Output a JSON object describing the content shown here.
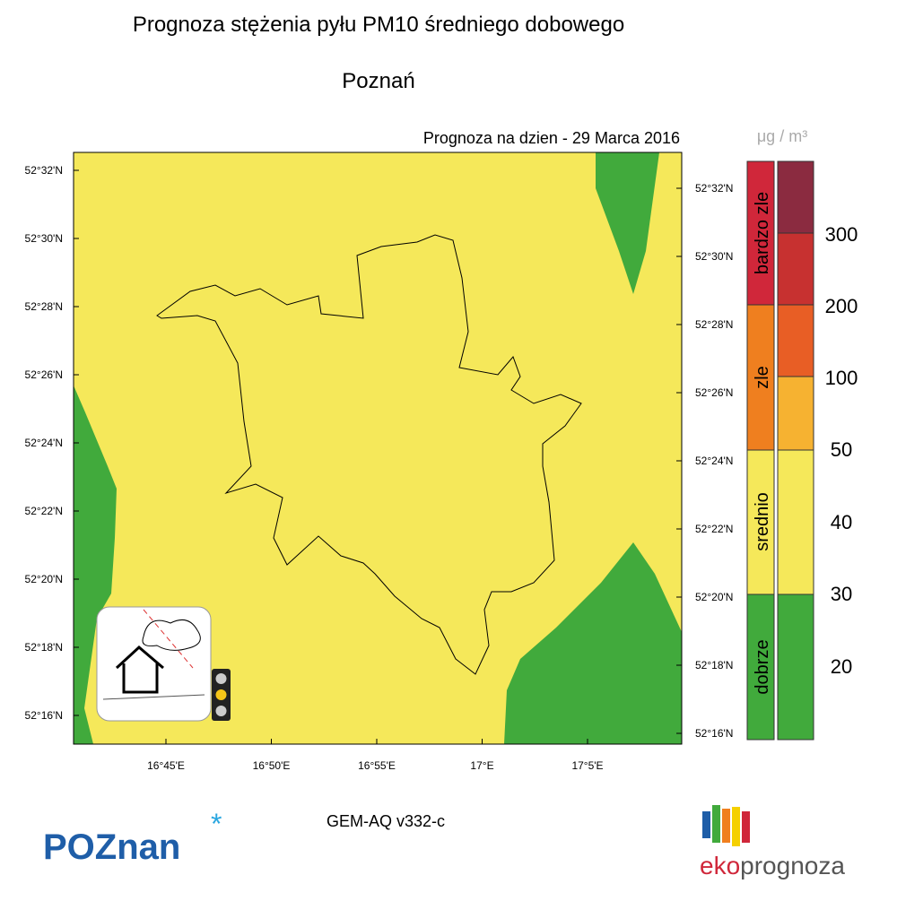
{
  "header": {
    "title": "Prognoza stężenia pyłu PM10 średniego dobowego",
    "city": "Poznań",
    "forecast_date": "Prognoza na dzien -  29 Marca 2016"
  },
  "map": {
    "left_lat_labels": [
      "52°32'N",
      "52°30'N",
      "52°28'N",
      "52°26'N",
      "52°24'N",
      "52°22'N",
      "52°20'N",
      "52°18'N",
      "52°16'N"
    ],
    "right_lat_labels": [
      "52°32'N",
      "52°30'N",
      "52°28'N",
      "52°26'N",
      "52°24'N",
      "52°22'N",
      "52°20'N",
      "52°18'N",
      "52°16'N"
    ],
    "lon_labels": [
      "16°45'E",
      "16°50'E",
      "16°55'E",
      "17°E",
      "17°5'E"
    ]
  },
  "legend": {
    "unit": "μg / m³",
    "categories": [
      "bardzo zle",
      "zle",
      "srednio",
      "dobrze"
    ],
    "levels": [
      "300",
      "200",
      "100",
      "50",
      "40",
      "30",
      "20"
    ]
  },
  "footer": {
    "model": "GEM-AQ v332-c",
    "logo_left": "POZnan",
    "logo_right_prefix": "eko",
    "logo_right_suffix": "prognoza"
  }
}
